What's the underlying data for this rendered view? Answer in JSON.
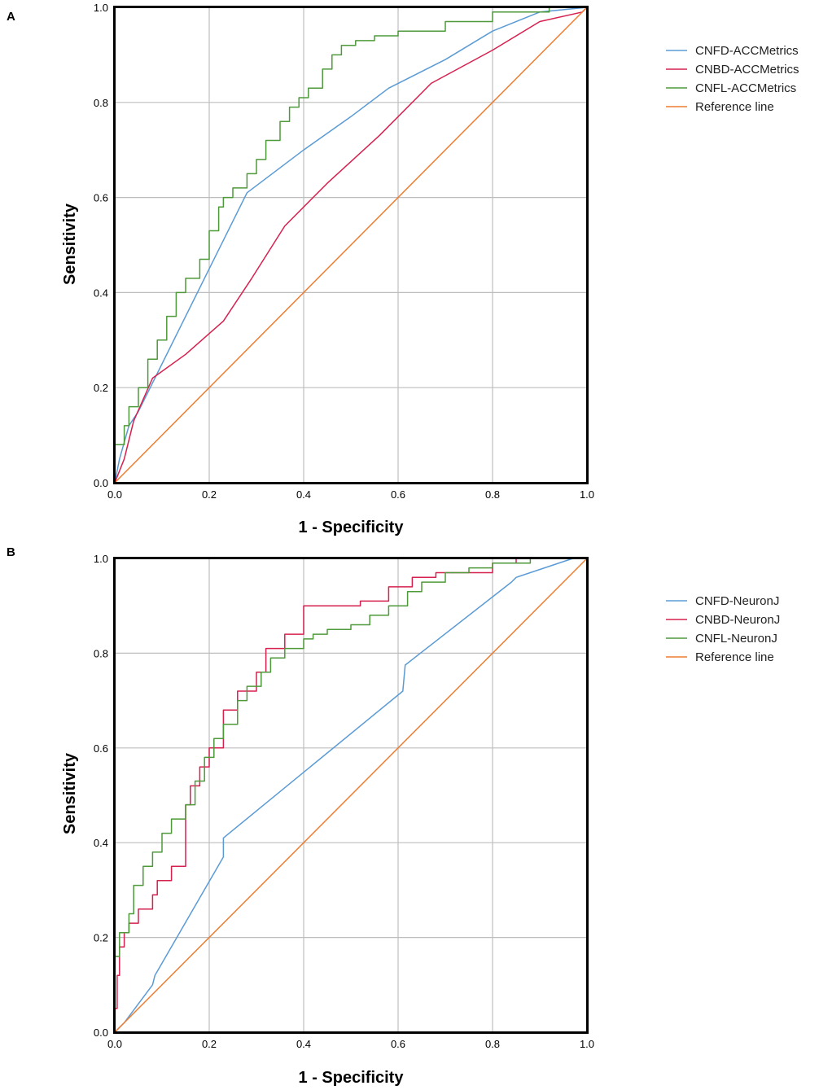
{
  "chart_data": [
    {
      "panel": "A",
      "type": "line",
      "xlabel": "1 - Specificity",
      "ylabel": "Sensitivity",
      "xlim": [
        0,
        1
      ],
      "ylim": [
        0,
        1
      ],
      "xticks": [
        "0.0",
        "0.2",
        "0.4",
        "0.6",
        "0.8",
        "1.0"
      ],
      "yticks": [
        "0.0",
        "0.2",
        "0.4",
        "0.6",
        "0.8",
        "1.0"
      ],
      "grid": true,
      "legend_position": "right",
      "series": [
        {
          "name": "CNFD-ACCMetrics",
          "color": "#5b9bd5",
          "step": false,
          "points": [
            [
              0,
              0
            ],
            [
              0.01,
              0.05
            ],
            [
              0.03,
              0.12
            ],
            [
              0.05,
              0.15
            ],
            [
              0.1,
              0.25
            ],
            [
              0.15,
              0.35
            ],
            [
              0.2,
              0.45
            ],
            [
              0.28,
              0.61
            ],
            [
              0.4,
              0.7
            ],
            [
              0.5,
              0.77
            ],
            [
              0.58,
              0.83
            ],
            [
              0.7,
              0.89
            ],
            [
              0.8,
              0.95
            ],
            [
              0.9,
              0.99
            ],
            [
              1,
              1
            ]
          ]
        },
        {
          "name": "CNBD-ACCMetrics",
          "color": "#d6204e",
          "step": false,
          "points": [
            [
              0,
              0
            ],
            [
              0.02,
              0.05
            ],
            [
              0.04,
              0.13
            ],
            [
              0.08,
              0.22
            ],
            [
              0.15,
              0.27
            ],
            [
              0.23,
              0.34
            ],
            [
              0.29,
              0.43
            ],
            [
              0.36,
              0.54
            ],
            [
              0.45,
              0.63
            ],
            [
              0.56,
              0.73
            ],
            [
              0.67,
              0.84
            ],
            [
              0.8,
              0.91
            ],
            [
              0.9,
              0.97
            ],
            [
              0.99,
              0.99
            ],
            [
              1,
              1
            ]
          ]
        },
        {
          "name": "CNFL-ACCMetrics",
          "color": "#4e9a3a",
          "step": true,
          "points": [
            [
              0,
              0
            ],
            [
              0,
              0.07
            ],
            [
              0.02,
              0.08
            ],
            [
              0.03,
              0.12
            ],
            [
              0.05,
              0.16
            ],
            [
              0.07,
              0.2
            ],
            [
              0.09,
              0.26
            ],
            [
              0.11,
              0.3
            ],
            [
              0.13,
              0.35
            ],
            [
              0.15,
              0.4
            ],
            [
              0.18,
              0.43
            ],
            [
              0.2,
              0.47
            ],
            [
              0.22,
              0.53
            ],
            [
              0.23,
              0.58
            ],
            [
              0.25,
              0.6
            ],
            [
              0.28,
              0.62
            ],
            [
              0.3,
              0.65
            ],
            [
              0.32,
              0.68
            ],
            [
              0.35,
              0.72
            ],
            [
              0.37,
              0.76
            ],
            [
              0.39,
              0.79
            ],
            [
              0.41,
              0.81
            ],
            [
              0.44,
              0.83
            ],
            [
              0.46,
              0.87
            ],
            [
              0.48,
              0.9
            ],
            [
              0.51,
              0.92
            ],
            [
              0.55,
              0.93
            ],
            [
              0.6,
              0.94
            ],
            [
              0.7,
              0.95
            ],
            [
              0.8,
              0.97
            ],
            [
              0.85,
              0.99
            ],
            [
              0.92,
              0.99
            ],
            [
              0.95,
              1
            ],
            [
              1,
              1
            ]
          ]
        },
        {
          "name": "Reference line",
          "color": "#ed7d31",
          "step": false,
          "points": [
            [
              0,
              0
            ],
            [
              1,
              1
            ]
          ]
        }
      ]
    },
    {
      "panel": "B",
      "type": "line",
      "xlabel": "1 - Specificity",
      "ylabel": "Sensitivity",
      "xlim": [
        0,
        1
      ],
      "ylim": [
        0,
        1
      ],
      "xticks": [
        "0.0",
        "0.2",
        "0.4",
        "0.6",
        "0.8",
        "1.0"
      ],
      "yticks": [
        "0.0",
        "0.2",
        "0.4",
        "0.6",
        "0.8",
        "1.0"
      ],
      "grid": true,
      "legend_position": "right",
      "series": [
        {
          "name": "CNFD-NeuronJ",
          "color": "#5b9bd5",
          "step": false,
          "points": [
            [
              0,
              0
            ],
            [
              0.02,
              0.02
            ],
            [
              0.08,
              0.1
            ],
            [
              0.085,
              0.12
            ],
            [
              0.23,
              0.37
            ],
            [
              0.23,
              0.41
            ],
            [
              0.61,
              0.72
            ],
            [
              0.615,
              0.775
            ],
            [
              0.84,
              0.95
            ],
            [
              0.85,
              0.96
            ],
            [
              0.97,
              1
            ],
            [
              1,
              1
            ]
          ]
        },
        {
          "name": "CNBD-NeuronJ",
          "color": "#d6204e",
          "step": true,
          "points": [
            [
              0,
              0
            ],
            [
              0.005,
              0.05
            ],
            [
              0.01,
              0.12
            ],
            [
              0.02,
              0.18
            ],
            [
              0.03,
              0.21
            ],
            [
              0.05,
              0.23
            ],
            [
              0.08,
              0.26
            ],
            [
              0.09,
              0.29
            ],
            [
              0.12,
              0.32
            ],
            [
              0.15,
              0.35
            ],
            [
              0.15,
              0.4
            ],
            [
              0.16,
              0.48
            ],
            [
              0.18,
              0.52
            ],
            [
              0.2,
              0.56
            ],
            [
              0.23,
              0.6
            ],
            [
              0.23,
              0.64
            ],
            [
              0.26,
              0.68
            ],
            [
              0.3,
              0.72
            ],
            [
              0.32,
              0.76
            ],
            [
              0.36,
              0.81
            ],
            [
              0.4,
              0.84
            ],
            [
              0.4,
              0.89
            ],
            [
              0.52,
              0.9
            ],
            [
              0.58,
              0.91
            ],
            [
              0.58,
              0.93
            ],
            [
              0.63,
              0.94
            ],
            [
              0.68,
              0.96
            ],
            [
              0.8,
              0.97
            ],
            [
              0.85,
              0.99
            ],
            [
              0.95,
              1
            ],
            [
              1,
              1
            ]
          ]
        },
        {
          "name": "CNFL-NeuronJ",
          "color": "#4e9a3a",
          "step": true,
          "points": [
            [
              0,
              0
            ],
            [
              0,
              0.15
            ],
            [
              0.01,
              0.16
            ],
            [
              0.03,
              0.21
            ],
            [
              0.04,
              0.25
            ],
            [
              0.06,
              0.31
            ],
            [
              0.08,
              0.35
            ],
            [
              0.1,
              0.38
            ],
            [
              0.12,
              0.42
            ],
            [
              0.15,
              0.45
            ],
            [
              0.17,
              0.48
            ],
            [
              0.19,
              0.53
            ],
            [
              0.21,
              0.58
            ],
            [
              0.23,
              0.62
            ],
            [
              0.26,
              0.65
            ],
            [
              0.28,
              0.7
            ],
            [
              0.31,
              0.73
            ],
            [
              0.33,
              0.76
            ],
            [
              0.36,
              0.79
            ],
            [
              0.4,
              0.81
            ],
            [
              0.42,
              0.83
            ],
            [
              0.45,
              0.84
            ],
            [
              0.5,
              0.85
            ],
            [
              0.54,
              0.86
            ],
            [
              0.58,
              0.88
            ],
            [
              0.62,
              0.9
            ],
            [
              0.65,
              0.93
            ],
            [
              0.7,
              0.95
            ],
            [
              0.75,
              0.97
            ],
            [
              0.8,
              0.98
            ],
            [
              0.88,
              0.99
            ],
            [
              1,
              1
            ]
          ]
        },
        {
          "name": "Reference line",
          "color": "#ed7d31",
          "step": false,
          "points": [
            [
              0,
              0
            ],
            [
              1,
              1
            ]
          ]
        }
      ]
    }
  ]
}
